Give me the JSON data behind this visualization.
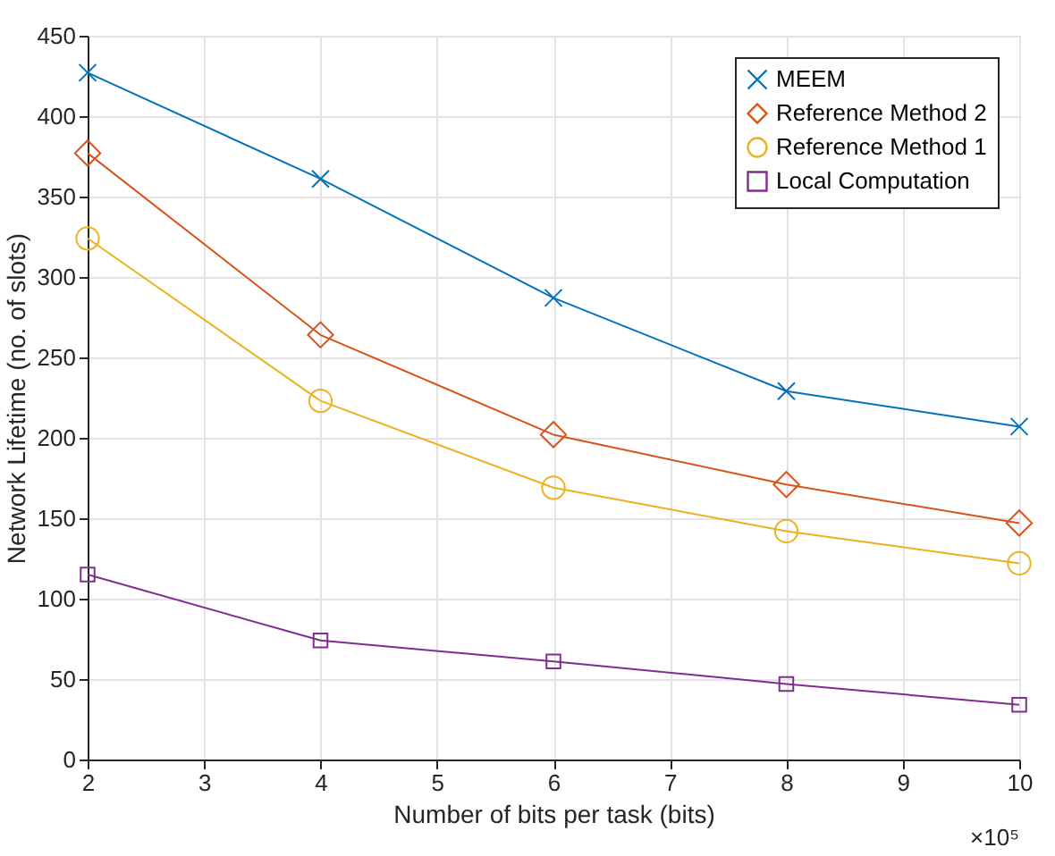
{
  "chart_data": {
    "type": "line",
    "xlabel": "Number of bits per task (bits)",
    "ylabel": "Network Lifetime (no. of slots)",
    "x": [
      2,
      4,
      6,
      8,
      10
    ],
    "xlim": [
      2,
      10
    ],
    "xticks": [
      2,
      3,
      4,
      5,
      6,
      7,
      8,
      9,
      10
    ],
    "ylim": [
      0,
      450
    ],
    "yticks": [
      0,
      50,
      100,
      150,
      200,
      250,
      300,
      350,
      400,
      450
    ],
    "grid": true,
    "legend": "top right",
    "line_style": "solid",
    "annotations": [
      "×10⁵"
    ],
    "series": [
      {
        "name": "MEEM",
        "color": "#0072bd",
        "marker": "cross",
        "values": [
          427,
          361,
          287,
          229,
          207
        ]
      },
      {
        "name": "Reference Method 2",
        "color": "#d95319",
        "marker": "diamond",
        "values": [
          377,
          264,
          202,
          171,
          147
        ]
      },
      {
        "name": "Reference Method 1",
        "color": "#edb120",
        "marker": "circle",
        "values": [
          324,
          223,
          169,
          142,
          122
        ]
      },
      {
        "name": "Local Computation",
        "color": "#7e2f8e",
        "marker": "square",
        "values": [
          115,
          74,
          61,
          47,
          34
        ]
      }
    ]
  }
}
